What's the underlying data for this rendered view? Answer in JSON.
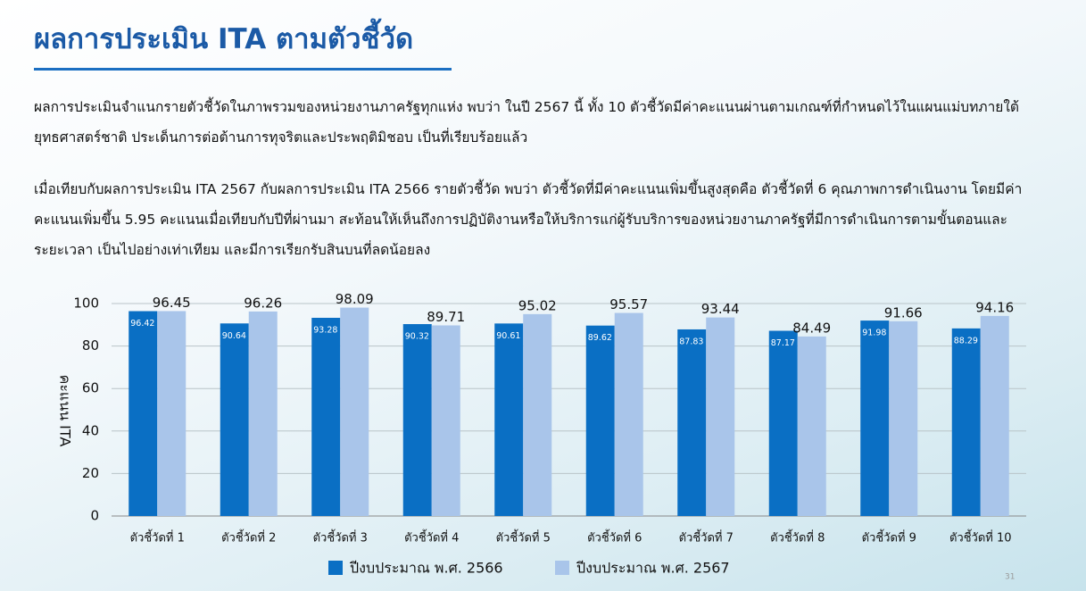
{
  "header": {
    "title": "ผลการประเมิน ITA ตามตัวชี้วัด"
  },
  "paragraphs": [
    "ผลการประเมินจำแนกรายตัวชี้วัดในภาพรวมของหน่วยงานภาครัฐทุกแห่ง พบว่า ในปี 2567 นี้ ทั้ง 10 ตัวชี้วัดมีค่าคะแนนผ่านตามเกณฑ์ที่กำหนดไว้ในแผนแม่บทภายใต้ยุทธศาสตร์ชาติ ประเด็นการต่อต้านการทุจริตและประพฤติมิชอบ เป็นที่เรียบร้อยแล้ว",
    "เมื่อเทียบกับผลการประเมิน ITA 2567 กับผลการประเมิน ITA 2566 รายตัวชี้วัด พบว่า ตัวชี้วัดที่มีค่าคะแนนเพิ่มขึ้นสูงสุดคือ ตัวชี้วัดที่ 6 คุณภาพการดำเนินงาน โดยมีค่าคะแนนเพิ่มขึ้น 5.95 คะแนนเมื่อเทียบกับปีที่ผ่านมา สะท้อนให้เห็นถึงการปฏิบัติงานหรือให้บริการแก่ผู้รับบริการของหน่วยงานภาครัฐที่มีการดำเนินการตามขั้นตอนและระยะเวลา เป็นไปอย่างเท่าเทียม และมีการเรียกรับสินบนที่ลดน้อยลง"
  ],
  "chart_data": {
    "type": "bar",
    "y_label": "คะแนน ITA",
    "categories": [
      "ตัวชี้วัดที่ 1",
      "ตัวชี้วัดที่ 2",
      "ตัวชี้วัดที่ 3",
      "ตัวชี้วัดที่ 4",
      "ตัวชี้วัดที่ 5",
      "ตัวชี้วัดที่ 6",
      "ตัวชี้วัดที่ 7",
      "ตัวชี้วัดที่ 8",
      "ตัวชี้วัดที่ 9",
      "ตัวชี้วัดที่ 10"
    ],
    "series": [
      {
        "name": "ปีงบประมาณ พ.ศ. 2566",
        "color": "#0a6fc4",
        "values": [
          96.42,
          90.64,
          93.28,
          90.32,
          90.61,
          89.62,
          87.83,
          87.17,
          91.98,
          88.29
        ]
      },
      {
        "name": "ปีงบประมาณ พ.ศ. 2567",
        "color": "#a9c5ea",
        "values": [
          96.45,
          96.26,
          98.09,
          89.71,
          95.02,
          95.57,
          93.44,
          84.49,
          91.66,
          94.16
        ]
      }
    ],
    "ylim": [
      0,
      100
    ],
    "yticks": [
      0,
      20,
      40,
      60,
      80,
      100
    ],
    "grid": true,
    "legend": "bottom"
  },
  "page_number": "31"
}
